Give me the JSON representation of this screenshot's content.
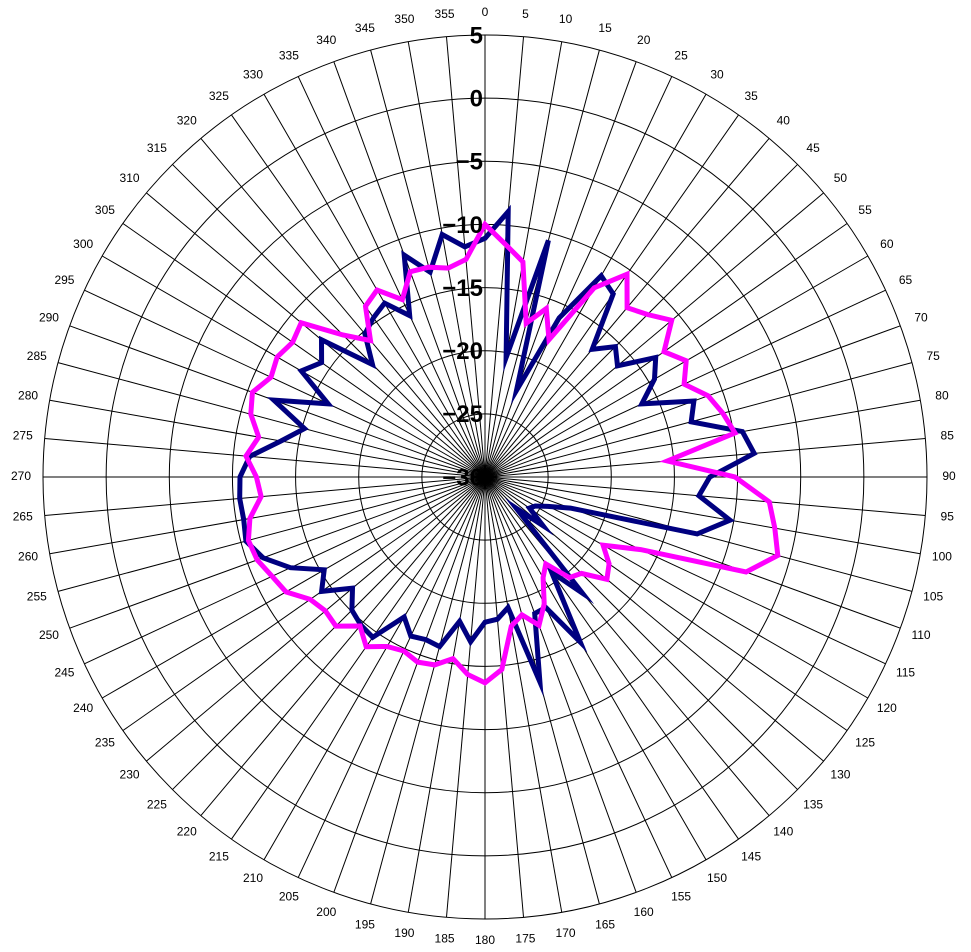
{
  "chart_data": {
    "type": "polar-line",
    "title": "",
    "angle_unit": "deg",
    "angle_direction": "clockwise",
    "angle_zero": "top",
    "angle_ticks": [
      0,
      5,
      10,
      15,
      20,
      25,
      30,
      35,
      40,
      45,
      50,
      55,
      60,
      65,
      70,
      75,
      80,
      85,
      90,
      95,
      100,
      105,
      110,
      115,
      120,
      125,
      130,
      135,
      140,
      145,
      150,
      155,
      160,
      165,
      170,
      175,
      180,
      185,
      190,
      195,
      200,
      205,
      210,
      215,
      220,
      225,
      230,
      235,
      240,
      245,
      250,
      255,
      260,
      265,
      270,
      275,
      280,
      285,
      290,
      295,
      300,
      305,
      310,
      315,
      320,
      325,
      330,
      335,
      340,
      345,
      350,
      355
    ],
    "angle_tick_labels": [
      "0",
      "5",
      "10",
      "15",
      "20",
      "25",
      "30",
      "35",
      "40",
      "45",
      "50",
      "55",
      "60",
      "65",
      "70",
      "75",
      "80",
      "85",
      "90",
      "95",
      "100",
      "105",
      "110",
      "115",
      "120",
      "125",
      "130",
      "135",
      "140",
      "145",
      "150",
      "155",
      "160",
      "165",
      "170",
      "175",
      "180",
      "185",
      "190",
      "195",
      "200",
      "205",
      "210",
      "215",
      "220",
      "225",
      "230",
      "235",
      "240",
      "245",
      "250",
      "255",
      "260",
      "265",
      "270",
      "275",
      "280",
      "285",
      "290",
      "295",
      "300",
      "305",
      "310",
      "315",
      "320",
      "325",
      "330",
      "335",
      "340",
      "345",
      "350",
      "355"
    ],
    "radial_range": [
      -30,
      5
    ],
    "radial_ticks": [
      -30,
      -25,
      -20,
      -15,
      -10,
      -5,
      0,
      5
    ],
    "radial_tick_labels": [
      "-30",
      "-25",
      "-20",
      "-15",
      "-10",
      "-5",
      "0",
      "5"
    ],
    "grid": true,
    "angles": [
      0,
      5,
      10,
      15,
      20,
      25,
      30,
      35,
      40,
      45,
      50,
      55,
      60,
      65,
      70,
      75,
      80,
      85,
      90,
      95,
      100,
      105,
      110,
      115,
      120,
      125,
      130,
      135,
      140,
      145,
      150,
      155,
      160,
      165,
      170,
      175,
      180,
      185,
      190,
      195,
      200,
      205,
      210,
      215,
      220,
      225,
      230,
      235,
      240,
      245,
      250,
      255,
      260,
      265,
      270,
      275,
      280,
      285,
      290,
      295,
      300,
      305,
      310,
      315,
      320,
      325,
      330,
      335,
      340,
      345,
      350,
      355
    ],
    "series": [
      {
        "color": "#000080",
        "values": [
          -11.1,
          -8.9,
          -20.4,
          -10.6,
          -22.7,
          -16.1,
          -11.6,
          -12.3,
          -16.8,
          -15.4,
          -16.3,
          -13.5,
          -14.5,
          -16.3,
          -12.4,
          -13.1,
          -9.3,
          -8.6,
          -12.2,
          -13.0,
          -10.3,
          -12.6,
          -22.8,
          -24.5,
          -25.4,
          -25.7,
          -24.0,
          -26.5,
          -18.0,
          -20.8,
          -14.9,
          -18.6,
          -18.5,
          -13.2,
          -19.5,
          -18.7,
          -18.5,
          -16.9,
          -18.4,
          -16.1,
          -16.3,
          -16.1,
          -17.2,
          -14.5,
          -14.7,
          -15.1,
          -16.3,
          -14.2,
          -15.3,
          -13.0,
          -11.3,
          -10.4,
          -10.6,
          -10.5,
          -10.6,
          -11.3,
          -13.6,
          -15.2,
          -12.2,
          -16.3,
          -13.2,
          -14.2,
          -13.1,
          -17.4,
          -15.2,
          -14.6,
          -14.1,
          -15.9,
          -11.3,
          -13.2,
          -10.5,
          -11.7
        ],
        "type": "line",
        "name": ""
      },
      {
        "color": "#ff00ff",
        "values": [
          -10.0,
          -11.5,
          -12.7,
          -17.4,
          -15.8,
          -18.0,
          -12.7,
          -10.4,
          -12.5,
          -11.8,
          -10.7,
          -12.7,
          -11.6,
          -12.6,
          -11.2,
          -10.5,
          -9.9,
          -15.5,
          -10.2,
          -7.4,
          -6.7,
          -6.0,
          -8.0,
          -16.4,
          -19.2,
          -18.0,
          -17.4,
          -19.2,
          -19.6,
          -21.6,
          -20.8,
          -18.9,
          -17.5,
          -18.7,
          -18.0,
          -14.7,
          -13.7,
          -14.3,
          -15.4,
          -14.6,
          -14.4,
          -14.8,
          -14.5,
          -13.6,
          -14.6,
          -13.3,
          -13.5,
          -13.1,
          -11.8,
          -11.4,
          -10.8,
          -10.6,
          -11.1,
          -12.2,
          -11.9,
          -11.0,
          -11.8,
          -10.8,
          -10.4,
          -11.3,
          -11.0,
          -11.4,
          -11.0,
          -14.1,
          -15.9,
          -13.5,
          -12.9,
          -14.5,
          -12.7,
          -12.8,
          -13.2,
          -12.7
        ],
        "type": "line",
        "name": ""
      }
    ]
  }
}
